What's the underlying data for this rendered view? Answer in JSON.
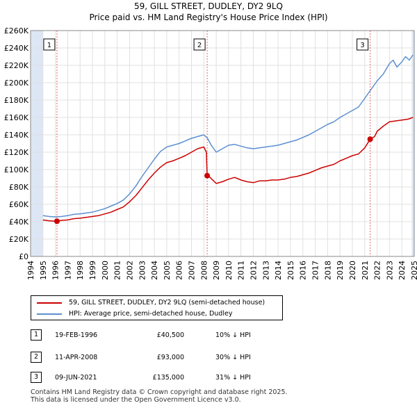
{
  "title_line1": "59, GILL STREET, DUDLEY, DY2 9LQ",
  "title_line2": "Price paid vs. HM Land Registry's House Price Index (HPI)",
  "colors": {
    "property_line": "#cc0000",
    "hpi_line": "#5b8fd0",
    "shade": "#dde6f5",
    "marker_line": "#e06666",
    "grid": "#e0e0e0"
  },
  "chart_data": {
    "type": "line",
    "title": "Price paid vs. HM Land Registry's House Price Index (HPI)",
    "xlabel": "",
    "ylabel": "",
    "xlim": [
      1994,
      2025
    ],
    "ylim": [
      0,
      260000
    ],
    "y_ticks": [
      {
        "value": 0,
        "label": "£0"
      },
      {
        "value": 20000,
        "label": "£20K"
      },
      {
        "value": 40000,
        "label": "£40K"
      },
      {
        "value": 60000,
        "label": "£60K"
      },
      {
        "value": 80000,
        "label": "£80K"
      },
      {
        "value": 100000,
        "label": "£100K"
      },
      {
        "value": 120000,
        "label": "£120K"
      },
      {
        "value": 140000,
        "label": "£140K"
      },
      {
        "value": 160000,
        "label": "£160K"
      },
      {
        "value": 180000,
        "label": "£180K"
      },
      {
        "value": 200000,
        "label": "£200K"
      },
      {
        "value": 220000,
        "label": "£220K"
      },
      {
        "value": 240000,
        "label": "£240K"
      },
      {
        "value": 260000,
        "label": "£260K"
      }
    ],
    "x_ticks": [
      "1994",
      "1995",
      "1996",
      "1997",
      "1998",
      "1999",
      "2000",
      "2001",
      "2002",
      "2003",
      "2004",
      "2005",
      "2006",
      "2007",
      "2008",
      "2009",
      "2010",
      "2011",
      "2012",
      "2013",
      "2014",
      "2015",
      "2016",
      "2017",
      "2018",
      "2019",
      "2020",
      "2021",
      "2022",
      "2023",
      "2024",
      "2025"
    ],
    "shaded_ranges": [
      [
        1994,
        1995.0
      ],
      [
        2024.8,
        2025
      ]
    ],
    "series": [
      {
        "name": "59, GILL STREET, DUDLEY, DY2 9LQ (semi-detached house)",
        "color": "#cc0000",
        "points": [
          [
            1995.0,
            42000
          ],
          [
            1995.5,
            41000
          ],
          [
            1996.13,
            40500
          ],
          [
            1996.5,
            41500
          ],
          [
            1997.0,
            42000
          ],
          [
            1997.5,
            43500
          ],
          [
            1998.0,
            44000
          ],
          [
            1998.5,
            45000
          ],
          [
            1999.0,
            46000
          ],
          [
            1999.5,
            47000
          ],
          [
            2000.0,
            49000
          ],
          [
            2000.5,
            51000
          ],
          [
            2001.0,
            54000
          ],
          [
            2001.5,
            57000
          ],
          [
            2002.0,
            63000
          ],
          [
            2002.5,
            70000
          ],
          [
            2003.0,
            79000
          ],
          [
            2003.5,
            88000
          ],
          [
            2004.0,
            96000
          ],
          [
            2004.5,
            103000
          ],
          [
            2005.0,
            108000
          ],
          [
            2005.5,
            110000
          ],
          [
            2006.0,
            113000
          ],
          [
            2006.5,
            116000
          ],
          [
            2007.0,
            120000
          ],
          [
            2007.5,
            124000
          ],
          [
            2008.0,
            126000
          ],
          [
            2008.2,
            120000
          ],
          [
            2008.27,
            93000
          ],
          [
            2008.5,
            91000
          ],
          [
            2009.0,
            84000
          ],
          [
            2009.5,
            86000
          ],
          [
            2010.0,
            89000
          ],
          [
            2010.5,
            91000
          ],
          [
            2011.0,
            88000
          ],
          [
            2011.5,
            86000
          ],
          [
            2012.0,
            85000
          ],
          [
            2012.5,
            87000
          ],
          [
            2013.0,
            87000
          ],
          [
            2013.5,
            88000
          ],
          [
            2014.0,
            88000
          ],
          [
            2014.5,
            89000
          ],
          [
            2015.0,
            91000
          ],
          [
            2015.5,
            92000
          ],
          [
            2016.0,
            94000
          ],
          [
            2016.5,
            96000
          ],
          [
            2017.0,
            99000
          ],
          [
            2017.5,
            102000
          ],
          [
            2018.0,
            104000
          ],
          [
            2018.5,
            106000
          ],
          [
            2019.0,
            110000
          ],
          [
            2019.5,
            113000
          ],
          [
            2020.0,
            116000
          ],
          [
            2020.5,
            118000
          ],
          [
            2021.0,
            125000
          ],
          [
            2021.44,
            135000
          ],
          [
            2021.8,
            138000
          ],
          [
            2022.0,
            144000
          ],
          [
            2022.5,
            150000
          ],
          [
            2023.0,
            155000
          ],
          [
            2023.5,
            156000
          ],
          [
            2024.0,
            157000
          ],
          [
            2024.5,
            158000
          ],
          [
            2024.9,
            160000
          ]
        ]
      },
      {
        "name": "HPI: Average price, semi-detached house, Dudley",
        "color": "#5b8fd0",
        "points": [
          [
            1995.0,
            47000
          ],
          [
            1995.5,
            46000
          ],
          [
            1996.0,
            45500
          ],
          [
            1996.5,
            46000
          ],
          [
            1997.0,
            47000
          ],
          [
            1997.5,
            48500
          ],
          [
            1998.0,
            49000
          ],
          [
            1998.5,
            50000
          ],
          [
            1999.0,
            51000
          ],
          [
            1999.5,
            53000
          ],
          [
            2000.0,
            55000
          ],
          [
            2000.5,
            58000
          ],
          [
            2001.0,
            61000
          ],
          [
            2001.5,
            65000
          ],
          [
            2002.0,
            72000
          ],
          [
            2002.5,
            81000
          ],
          [
            2003.0,
            92000
          ],
          [
            2003.5,
            102000
          ],
          [
            2004.0,
            112000
          ],
          [
            2004.5,
            121000
          ],
          [
            2005.0,
            126000
          ],
          [
            2005.5,
            128000
          ],
          [
            2006.0,
            130000
          ],
          [
            2006.5,
            133000
          ],
          [
            2007.0,
            136000
          ],
          [
            2007.5,
            138000
          ],
          [
            2008.0,
            140000
          ],
          [
            2008.3,
            136000
          ],
          [
            2008.6,
            128000
          ],
          [
            2009.0,
            120000
          ],
          [
            2009.5,
            124000
          ],
          [
            2010.0,
            128000
          ],
          [
            2010.5,
            129000
          ],
          [
            2011.0,
            127000
          ],
          [
            2011.5,
            125000
          ],
          [
            2012.0,
            124000
          ],
          [
            2012.5,
            125000
          ],
          [
            2013.0,
            126000
          ],
          [
            2013.5,
            127000
          ],
          [
            2014.0,
            128000
          ],
          [
            2014.5,
            130000
          ],
          [
            2015.0,
            132000
          ],
          [
            2015.5,
            134000
          ],
          [
            2016.0,
            137000
          ],
          [
            2016.5,
            140000
          ],
          [
            2017.0,
            144000
          ],
          [
            2017.5,
            148000
          ],
          [
            2018.0,
            152000
          ],
          [
            2018.5,
            155000
          ],
          [
            2019.0,
            160000
          ],
          [
            2019.5,
            164000
          ],
          [
            2020.0,
            168000
          ],
          [
            2020.5,
            172000
          ],
          [
            2021.0,
            182000
          ],
          [
            2021.5,
            192000
          ],
          [
            2022.0,
            202000
          ],
          [
            2022.5,
            210000
          ],
          [
            2023.0,
            222000
          ],
          [
            2023.3,
            226000
          ],
          [
            2023.6,
            218000
          ],
          [
            2024.0,
            224000
          ],
          [
            2024.3,
            230000
          ],
          [
            2024.6,
            226000
          ],
          [
            2024.9,
            232000
          ]
        ]
      }
    ],
    "transactions": [
      {
        "id": "1",
        "x": 1996.13,
        "y": 40500
      },
      {
        "id": "2",
        "x": 2008.27,
        "y": 93000
      },
      {
        "id": "3",
        "x": 2021.44,
        "y": 135000
      }
    ],
    "annotations": [
      {
        "id": "1",
        "x": 1996.13
      },
      {
        "id": "2",
        "x": 2008.27
      },
      {
        "id": "3",
        "x": 2021.44
      }
    ]
  },
  "legend": {
    "property": "59, GILL STREET, DUDLEY, DY2 9LQ (semi-detached house)",
    "hpi": "HPI: Average price, semi-detached house, Dudley"
  },
  "transactions": [
    {
      "id": "1",
      "date": "19-FEB-1996",
      "price": "£40,500",
      "hpi": "10% ↓ HPI"
    },
    {
      "id": "2",
      "date": "11-APR-2008",
      "price": "£93,000",
      "hpi": "30% ↓ HPI"
    },
    {
      "id": "3",
      "date": "09-JUN-2021",
      "price": "£135,000",
      "hpi": "31% ↓ HPI"
    }
  ],
  "footer": {
    "line1": "Contains HM Land Registry data © Crown copyright and database right 2025.",
    "line2": "This data is licensed under the Open Government Licence v3.0."
  }
}
